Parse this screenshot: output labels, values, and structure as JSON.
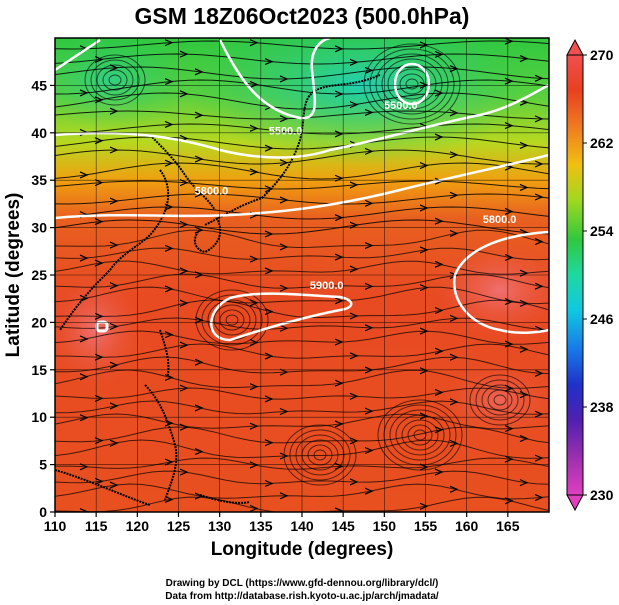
{
  "title": "GSM 18Z06Oct2023 (500.0hPa)",
  "x_axis": {
    "label": "Longitude (degrees)",
    "min": 110,
    "max": 170,
    "ticks": [
      "110",
      "115",
      "120",
      "125",
      "130",
      "135",
      "140",
      "145",
      "150",
      "155",
      "160",
      "165"
    ]
  },
  "y_axis": {
    "label": "Latitude (degrees)",
    "min": 0,
    "max": 50,
    "ticks": [
      "0",
      "5",
      "10",
      "15",
      "20",
      "25",
      "30",
      "35",
      "40",
      "45"
    ]
  },
  "colorbar": {
    "min": 230,
    "max": 270,
    "labels": [
      "270",
      "262",
      "254",
      "246",
      "238",
      "230"
    ],
    "colors": [
      "#e040c0",
      "#5020b0",
      "#2030c8",
      "#1878e8",
      "#10c8e0",
      "#20d8a0",
      "#30c840",
      "#a0d820",
      "#f0c010",
      "#f08020",
      "#e84020",
      "#f05050"
    ]
  },
  "contours": [
    {
      "label": "5900.0",
      "lon": 143,
      "lat": 23.5
    },
    {
      "label": "5800.0",
      "lon": 129,
      "lat": 33.5
    },
    {
      "label": "5800.0",
      "lon": 164,
      "lat": 30.5
    },
    {
      "label": "5500.0",
      "lon": 152,
      "lat": 42.5
    },
    {
      "label": "5500.0",
      "lon": 138,
      "lat": 39.8
    }
  ],
  "credits": [
    "Drawing by DCL (https://www.gfd-dennou.org/library/dcl/)",
    "Data from http://database.rish.kyoto-u.ac.jp/arch/jmadata/"
  ]
}
